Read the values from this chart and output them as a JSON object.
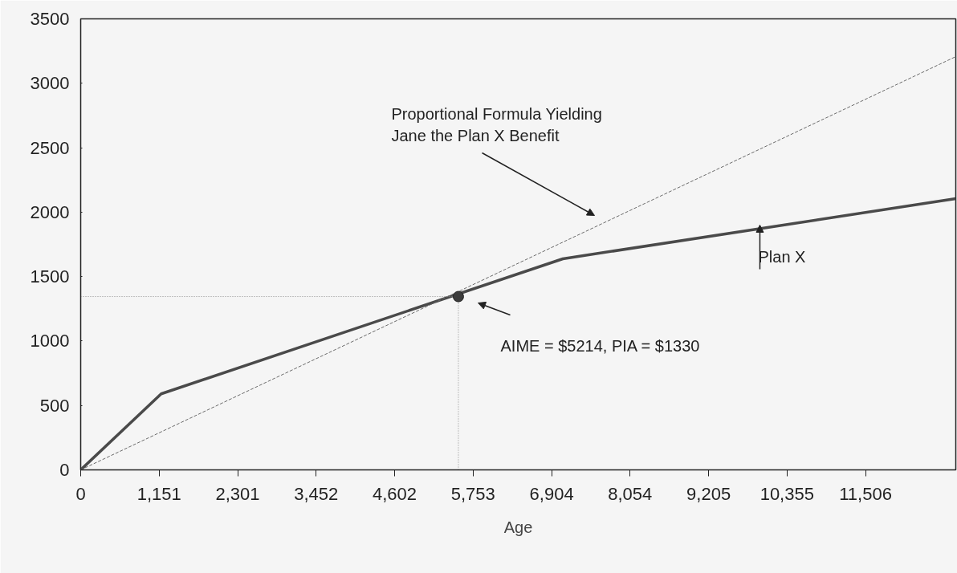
{
  "chart_data": {
    "type": "line",
    "xlabel": "Age",
    "xlim": [
      0,
      12829
    ],
    "ylim": [
      0,
      3500
    ],
    "xticks": [
      0,
      {
        "value": 1151,
        "label": "1,151"
      },
      {
        "value": 2301,
        "label": "2,301"
      },
      {
        "value": 3452,
        "label": "3,452"
      },
      {
        "value": 4602,
        "label": "4,602"
      },
      {
        "value": 5753,
        "label": "5,753"
      },
      {
        "value": 6904,
        "label": "6,904"
      },
      {
        "value": 8054,
        "label": "8,054"
      },
      {
        "value": 9205,
        "label": "9,205"
      },
      {
        "value": 10355,
        "label": "10,355"
      },
      {
        "value": 11506,
        "label": "11,506"
      }
    ],
    "yticks": [
      0,
      500,
      1000,
      1500,
      2000,
      2500,
      3000,
      3500
    ],
    "grid": false,
    "series": [
      {
        "color": "#4a4a4a",
        "line_style": "solid",
        "x": [
          0,
          1180,
          7068,
          12829
        ],
        "values": [
          0,
          590,
          1638,
          2105
        ]
      },
      {
        "color": "#6a6a6a",
        "line_style": "dashed",
        "x": [
          0,
          12829
        ],
        "values": [
          0,
          3207
        ]
      },
      {
        "color": "#8a8a8a",
        "line_style": "dotted",
        "x": [
          0,
          5537
        ],
        "values": [
          1345,
          1345
        ]
      },
      {
        "color": "#8a8a8a",
        "line_style": "dotted",
        "x": [
          5537,
          5537
        ],
        "values": [
          0,
          1345
        ]
      },
      {
        "type": "scatter",
        "color": "#3c3c3c",
        "marker": "circle",
        "x": [
          5537
        ],
        "values": [
          1345
        ]
      }
    ],
    "annotations": [
      "Proportional Formula Yielding\nJane the Plan X Benefit",
      {
        "text": "Plan X",
        "x": 9957,
        "y": 1900
      },
      "AIME = $5214, PIA = $1330"
    ]
  }
}
